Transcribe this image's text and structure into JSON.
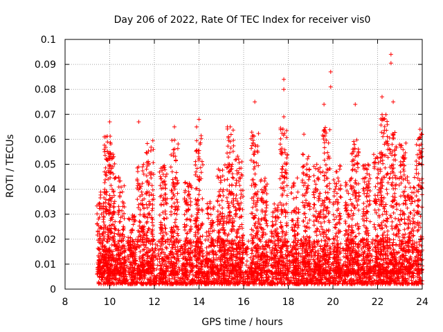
{
  "chart_data": {
    "type": "scatter",
    "title": "Day 206 of 2022, Rate Of TEC Index for receiver vis0",
    "xlabel": "GPS time / hours",
    "ylabel": "ROTI / TECUs",
    "xlim": [
      8,
      24
    ],
    "ylim": [
      0,
      0.1
    ],
    "xticks": [
      8,
      10,
      12,
      14,
      16,
      18,
      20,
      22,
      24
    ],
    "yticks": [
      0,
      0.01,
      0.02,
      0.03,
      0.04,
      0.05,
      0.06,
      0.07,
      0.08,
      0.09,
      0.1
    ],
    "grid": true,
    "marker": "plus",
    "color": "#ff0000",
    "x_start": 9.5,
    "x_end": 24,
    "notable_points": [
      {
        "x": 10.0,
        "y": 0.067
      },
      {
        "x": 11.3,
        "y": 0.067
      },
      {
        "x": 12.9,
        "y": 0.065
      },
      {
        "x": 14.0,
        "y": 0.068
      },
      {
        "x": 15.4,
        "y": 0.065
      },
      {
        "x": 16.5,
        "y": 0.075
      },
      {
        "x": 17.8,
        "y": 0.084
      },
      {
        "x": 17.8,
        "y": 0.08
      },
      {
        "x": 17.8,
        "y": 0.069
      },
      {
        "x": 18.7,
        "y": 0.062
      },
      {
        "x": 19.6,
        "y": 0.074
      },
      {
        "x": 19.9,
        "y": 0.087
      },
      {
        "x": 19.9,
        "y": 0.081
      },
      {
        "x": 21.0,
        "y": 0.074
      },
      {
        "x": 22.2,
        "y": 0.077
      },
      {
        "x": 22.6,
        "y": 0.094
      },
      {
        "x": 22.6,
        "y": 0.0905
      },
      {
        "x": 22.7,
        "y": 0.075
      },
      {
        "x": 23.9,
        "y": 0.064
      }
    ],
    "bursts": [
      {
        "x": 9.6,
        "peak": 0.04
      },
      {
        "x": 9.9,
        "peak": 0.062
      },
      {
        "x": 10.1,
        "peak": 0.055
      },
      {
        "x": 10.5,
        "peak": 0.045
      },
      {
        "x": 11.0,
        "peak": 0.03
      },
      {
        "x": 11.4,
        "peak": 0.05
      },
      {
        "x": 11.8,
        "peak": 0.06
      },
      {
        "x": 12.4,
        "peak": 0.05
      },
      {
        "x": 12.9,
        "peak": 0.06
      },
      {
        "x": 13.5,
        "peak": 0.045
      },
      {
        "x": 14.0,
        "peak": 0.065
      },
      {
        "x": 14.5,
        "peak": 0.035
      },
      {
        "x": 15.0,
        "peak": 0.05
      },
      {
        "x": 15.4,
        "peak": 0.065
      },
      {
        "x": 15.8,
        "peak": 0.055
      },
      {
        "x": 16.5,
        "peak": 0.065
      },
      {
        "x": 16.9,
        "peak": 0.045
      },
      {
        "x": 17.4,
        "peak": 0.035
      },
      {
        "x": 17.8,
        "peak": 0.065
      },
      {
        "x": 18.3,
        "peak": 0.045
      },
      {
        "x": 18.8,
        "peak": 0.055
      },
      {
        "x": 19.3,
        "peak": 0.05
      },
      {
        "x": 19.7,
        "peak": 0.065
      },
      {
        "x": 20.2,
        "peak": 0.05
      },
      {
        "x": 20.7,
        "peak": 0.045
      },
      {
        "x": 21.0,
        "peak": 0.06
      },
      {
        "x": 21.5,
        "peak": 0.05
      },
      {
        "x": 22.0,
        "peak": 0.055
      },
      {
        "x": 22.3,
        "peak": 0.07
      },
      {
        "x": 22.7,
        "peak": 0.065
      },
      {
        "x": 23.1,
        "peak": 0.06
      },
      {
        "x": 23.5,
        "peak": 0.045
      },
      {
        "x": 23.9,
        "peak": 0.063
      }
    ]
  }
}
